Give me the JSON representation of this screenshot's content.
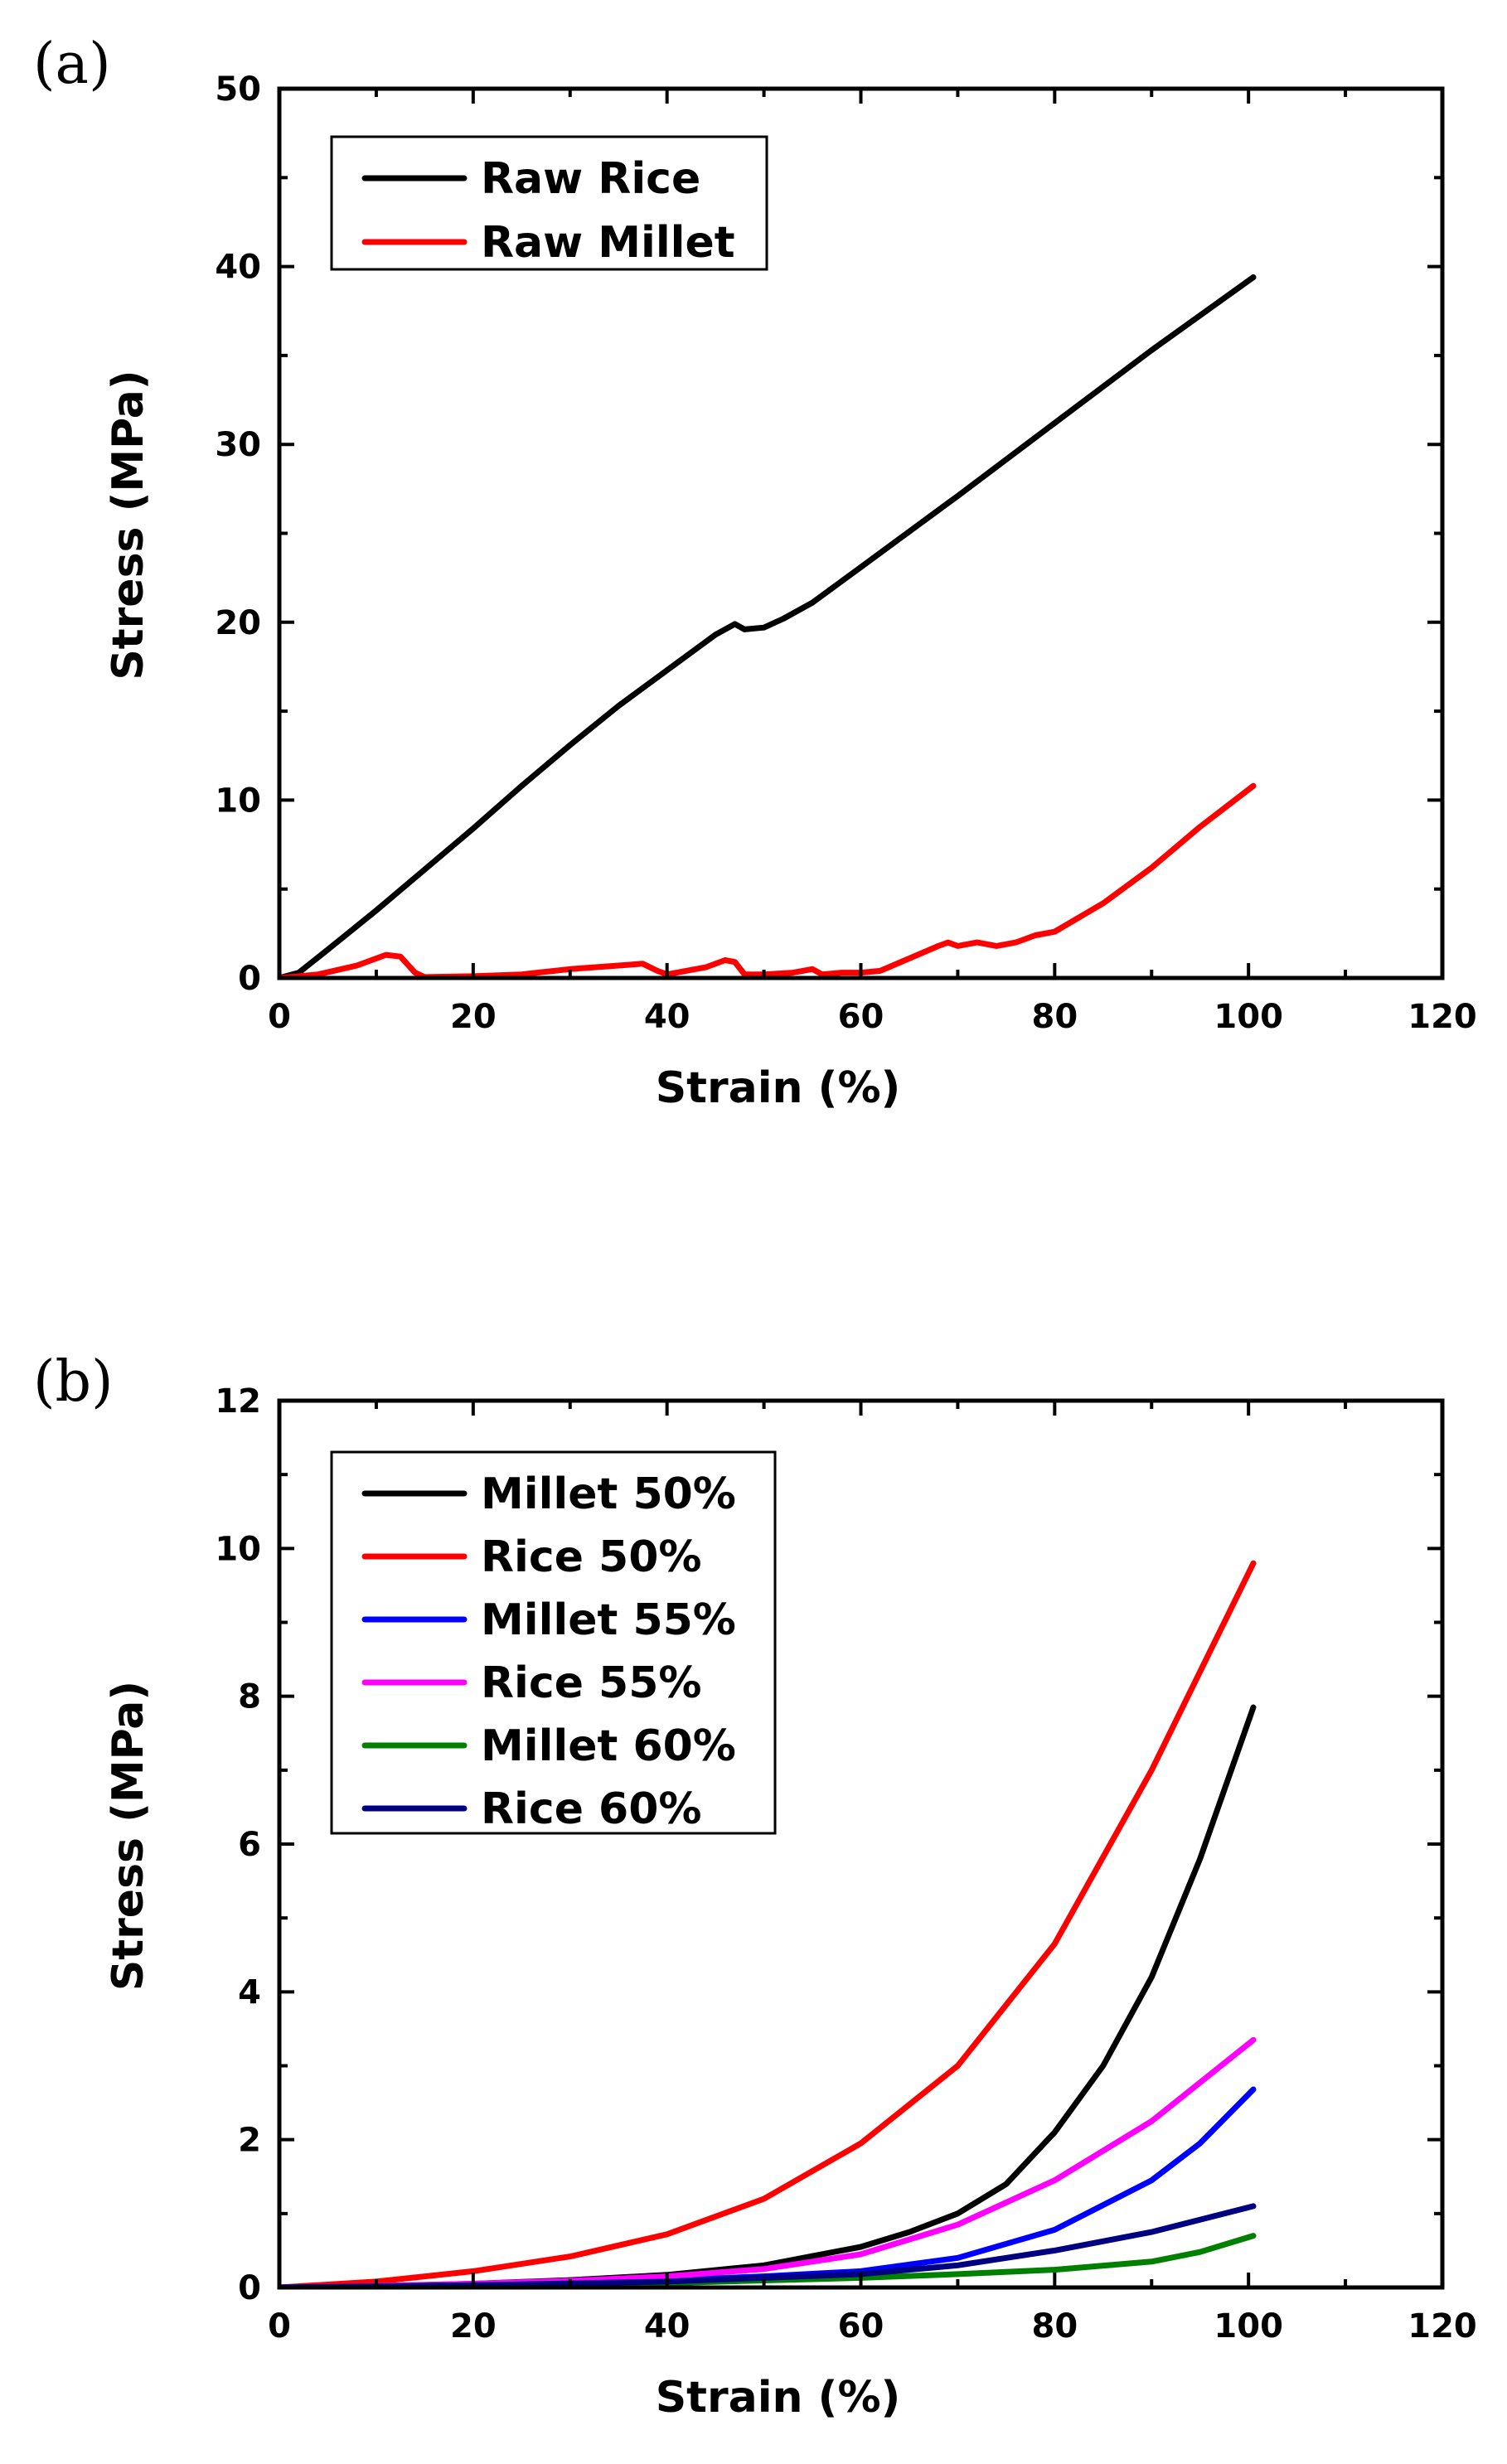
{
  "chart_data": [
    {
      "panel_label": "(a)",
      "type": "line",
      "xlabel": "Strain (%)",
      "ylabel": "Stress (MPa)",
      "xlim": [
        0,
        120
      ],
      "ylim": [
        0,
        50
      ],
      "xticks": [
        0,
        20,
        40,
        60,
        80,
        100,
        120
      ],
      "yticks": [
        0,
        10,
        20,
        30,
        40,
        50
      ],
      "legend_position": "top-left",
      "series": [
        {
          "name": "Raw Rice",
          "color": "#000000",
          "x": [
            0,
            2,
            5,
            10,
            15,
            20,
            25,
            30,
            35,
            40,
            45,
            47,
            48,
            50,
            52,
            55,
            60,
            70,
            80,
            90,
            100.5
          ],
          "y": [
            0,
            0.3,
            1.6,
            3.8,
            6.1,
            8.4,
            10.8,
            13.1,
            15.3,
            17.3,
            19.3,
            19.9,
            19.6,
            19.7,
            20.2,
            21.1,
            23.1,
            27.1,
            31.2,
            35.3,
            39.4
          ]
        },
        {
          "name": "Raw Millet",
          "color": "#ff0000",
          "x": [
            0,
            4,
            8,
            11,
            12.5,
            14,
            15,
            20,
            25,
            30,
            35,
            37.5,
            39,
            40,
            44,
            46,
            47,
            48,
            50,
            53,
            55,
            56,
            58,
            60,
            62,
            65,
            68,
            69,
            70,
            72,
            74,
            76,
            78,
            80,
            85,
            90,
            95,
            100.5
          ],
          "y": [
            0,
            0.2,
            0.7,
            1.3,
            1.2,
            0.3,
            0.05,
            0.1,
            0.2,
            0.5,
            0.7,
            0.8,
            0.4,
            0.2,
            0.6,
            1.0,
            0.9,
            0.2,
            0.2,
            0.3,
            0.5,
            0.2,
            0.3,
            0.3,
            0.4,
            1.1,
            1.8,
            2.0,
            1.8,
            2.0,
            1.8,
            2.0,
            2.4,
            2.6,
            4.2,
            6.2,
            8.5,
            10.8
          ]
        }
      ]
    },
    {
      "panel_label": "(b)",
      "type": "line",
      "xlabel": "Strain (%)",
      "ylabel": "Stress (MPa)",
      "xlim": [
        0,
        120
      ],
      "ylim": [
        0,
        12
      ],
      "xticks": [
        0,
        20,
        40,
        60,
        80,
        100,
        120
      ],
      "yticks": [
        0,
        2,
        4,
        6,
        8,
        10,
        12
      ],
      "legend_position": "top-left",
      "series": [
        {
          "name": "Millet 50%",
          "color": "#000000",
          "x": [
            0,
            10,
            20,
            30,
            40,
            50,
            60,
            65,
            70,
            75,
            80,
            85,
            90,
            95,
            100.5
          ],
          "y": [
            0,
            0.02,
            0.05,
            0.1,
            0.17,
            0.3,
            0.55,
            0.75,
            1.0,
            1.4,
            2.1,
            3.0,
            4.2,
            5.8,
            7.85
          ]
        },
        {
          "name": "Rice 50%",
          "color": "#ff0000",
          "x": [
            0,
            10,
            20,
            30,
            40,
            50,
            60,
            70,
            80,
            90,
            100.5
          ],
          "y": [
            0,
            0.08,
            0.22,
            0.42,
            0.72,
            1.2,
            1.95,
            3.0,
            4.65,
            7.0,
            9.8
          ]
        },
        {
          "name": "Millet 55%",
          "color": "#0000ff",
          "x": [
            0,
            10,
            20,
            30,
            40,
            50,
            60,
            70,
            80,
            90,
            95,
            100.5
          ],
          "y": [
            0,
            0.01,
            0.03,
            0.06,
            0.1,
            0.15,
            0.22,
            0.4,
            0.78,
            1.45,
            1.95,
            2.68
          ]
        },
        {
          "name": "Rice 55%",
          "color": "#ff00ff",
          "x": [
            0,
            10,
            20,
            30,
            40,
            50,
            60,
            70,
            80,
            90,
            100.5
          ],
          "y": [
            0,
            0.02,
            0.05,
            0.09,
            0.15,
            0.25,
            0.45,
            0.85,
            1.45,
            2.25,
            3.35
          ]
        },
        {
          "name": "Millet 60%",
          "color": "#008000",
          "x": [
            0,
            20,
            40,
            60,
            70,
            80,
            90,
            95,
            100.5
          ],
          "y": [
            0,
            0.02,
            0.06,
            0.13,
            0.18,
            0.24,
            0.35,
            0.48,
            0.7
          ]
        },
        {
          "name": "Rice 60%",
          "color": "#000080",
          "x": [
            0,
            20,
            40,
            60,
            70,
            80,
            90,
            100.5
          ],
          "y": [
            0,
            0.03,
            0.08,
            0.18,
            0.3,
            0.5,
            0.75,
            1.1
          ]
        }
      ]
    }
  ]
}
